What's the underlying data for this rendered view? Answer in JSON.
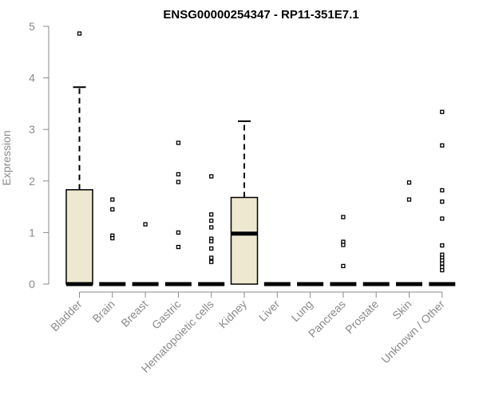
{
  "chart_data": {
    "type": "box",
    "title": "ENSG00000254347 - RP11-351E7.1",
    "ylabel": "Expression",
    "xlabel": "",
    "ylim": [
      0,
      5
    ],
    "yticks": [
      0,
      1,
      2,
      3,
      4,
      5
    ],
    "grid": false,
    "box_fill": "#EDE8CF",
    "categories": [
      "Bladder",
      "Brain",
      "Breast",
      "Gastric",
      "Hematopoietic cells",
      "Kidney",
      "Liver",
      "Lung",
      "Pancreas",
      "Prostate",
      "Skin",
      "Unknown / Other"
    ],
    "boxes": [
      {
        "q1": 0,
        "median": 0,
        "q3": 1.83,
        "whisker_low": 0,
        "whisker_high": 3.82,
        "outliers": [
          4.86
        ]
      },
      {
        "q1": 0,
        "median": 0,
        "q3": 0,
        "whisker_low": 0,
        "whisker_high": 0,
        "outliers": [
          1.64,
          1.45,
          0.94,
          0.89
        ]
      },
      {
        "q1": 0,
        "median": 0,
        "q3": 0,
        "whisker_low": 0,
        "whisker_high": 0,
        "outliers": [
          1.16
        ]
      },
      {
        "q1": 0,
        "median": 0,
        "q3": 0,
        "whisker_low": 0,
        "whisker_high": 0,
        "outliers": [
          2.74,
          2.13,
          1.98,
          1.0,
          0.72
        ]
      },
      {
        "q1": 0,
        "median": 0,
        "q3": 0,
        "whisker_low": 0,
        "whisker_high": 0,
        "outliers": [
          2.09,
          1.35,
          1.23,
          1.1,
          0.88,
          0.83,
          0.69,
          0.51,
          0.43
        ]
      },
      {
        "q1": 0,
        "median": 0.98,
        "q3": 1.68,
        "whisker_low": 0,
        "whisker_high": 3.16,
        "outliers": []
      },
      {
        "q1": 0,
        "median": 0,
        "q3": 0,
        "whisker_low": 0,
        "whisker_high": 0,
        "outliers": []
      },
      {
        "q1": 0,
        "median": 0,
        "q3": 0,
        "whisker_low": 0,
        "whisker_high": 0,
        "outliers": []
      },
      {
        "q1": 0,
        "median": 0,
        "q3": 0,
        "whisker_low": 0,
        "whisker_high": 0,
        "outliers": [
          1.3,
          0.82,
          0.76,
          0.35
        ]
      },
      {
        "q1": 0,
        "median": 0,
        "q3": 0,
        "whisker_low": 0,
        "whisker_high": 0,
        "outliers": []
      },
      {
        "q1": 0,
        "median": 0,
        "q3": 0,
        "whisker_low": 0,
        "whisker_high": 0,
        "outliers": [
          1.97,
          1.64
        ]
      },
      {
        "q1": 0,
        "median": 0,
        "q3": 0,
        "whisker_low": 0,
        "whisker_high": 0,
        "outliers": [
          3.34,
          2.69,
          1.82,
          1.6,
          1.27,
          0.75,
          0.57,
          0.51,
          0.46,
          0.4,
          0.33,
          0.27
        ]
      }
    ]
  }
}
